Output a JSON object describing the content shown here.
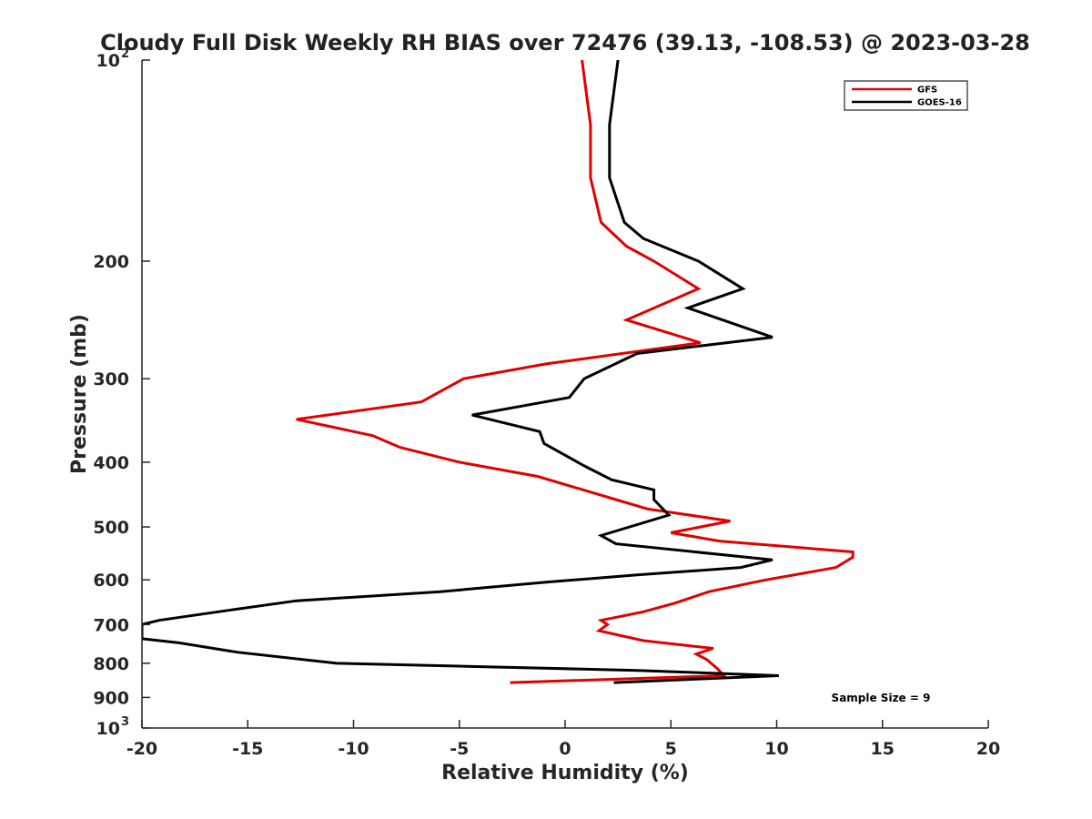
{
  "chart_data": {
    "type": "line",
    "title": "Cloudy Full Disk Weekly RH BIAS over 72476 (39.13, -108.53) @ 2023-03-28",
    "xlabel": "Relative Humidity (%)",
    "ylabel": "Pressure (mb)",
    "xlim": [
      -20,
      20
    ],
    "ylim": [
      100,
      1000
    ],
    "y_scale": "log",
    "y_reversed": true,
    "grid": false,
    "legend_position": "top-right",
    "x_ticks": [
      "-20",
      "-15",
      "-10",
      "-5",
      "0",
      "5",
      "10",
      "15",
      "20"
    ],
    "y_ticks": [
      {
        "value": 100,
        "base": "10",
        "exp": "2"
      },
      {
        "value": 200,
        "label": "200"
      },
      {
        "value": 300,
        "label": "300"
      },
      {
        "value": 400,
        "label": "400"
      },
      {
        "value": 500,
        "label": "500"
      },
      {
        "value": 600,
        "label": "600"
      },
      {
        "value": 700,
        "label": "700"
      },
      {
        "value": 800,
        "label": "800"
      },
      {
        "value": 900,
        "label": "900"
      },
      {
        "value": 1000,
        "base": "10",
        "exp": "3"
      }
    ],
    "annotation": "Sample Size = 9",
    "series": [
      {
        "name": "GFS",
        "color": "#e00000",
        "points": [
          [
            0.8,
            100
          ],
          [
            1.2,
            125
          ],
          [
            1.2,
            150
          ],
          [
            1.7,
            175
          ],
          [
            2.9,
            190
          ],
          [
            4.2,
            200
          ],
          [
            6.3,
            220
          ],
          [
            2.9,
            245
          ],
          [
            6.4,
            265
          ],
          [
            -0.9,
            285
          ],
          [
            -4.8,
            300
          ],
          [
            -6.8,
            325
          ],
          [
            -12.7,
            345
          ],
          [
            -9.1,
            365
          ],
          [
            -7.8,
            380
          ],
          [
            -5.0,
            400
          ],
          [
            -1.3,
            420
          ],
          [
            2.4,
            455
          ],
          [
            3.9,
            470
          ],
          [
            7.8,
            490
          ],
          [
            5.0,
            510
          ],
          [
            7.3,
            525
          ],
          [
            13.6,
            545
          ],
          [
            13.6,
            555
          ],
          [
            12.8,
            575
          ],
          [
            9.5,
            600
          ],
          [
            6.8,
            625
          ],
          [
            5.2,
            650
          ],
          [
            3.7,
            670
          ],
          [
            1.7,
            690
          ],
          [
            2.0,
            700
          ],
          [
            1.6,
            715
          ],
          [
            3.7,
            740
          ],
          [
            7.0,
            760
          ],
          [
            6.2,
            775
          ],
          [
            6.7,
            790
          ],
          [
            7.2,
            815
          ],
          [
            7.5,
            835
          ],
          [
            -2.6,
            855
          ]
        ]
      },
      {
        "name": "GOES-16",
        "color": "#000000",
        "points": [
          [
            2.5,
            100
          ],
          [
            2.1,
            125
          ],
          [
            2.1,
            150
          ],
          [
            2.8,
            175
          ],
          [
            3.7,
            185
          ],
          [
            6.3,
            200
          ],
          [
            8.4,
            220
          ],
          [
            5.8,
            235
          ],
          [
            9.8,
            260
          ],
          [
            3.4,
            275
          ],
          [
            0.9,
            300
          ],
          [
            0.2,
            320
          ],
          [
            -4.4,
            340
          ],
          [
            -1.2,
            360
          ],
          [
            -1.0,
            375
          ],
          [
            0.9,
            405
          ],
          [
            2.2,
            425
          ],
          [
            4.2,
            440
          ],
          [
            4.2,
            455
          ],
          [
            4.9,
            480
          ],
          [
            1.7,
            515
          ],
          [
            2.4,
            530
          ],
          [
            9.8,
            560
          ],
          [
            8.3,
            575
          ],
          [
            3.4,
            590
          ],
          [
            -0.9,
            605
          ],
          [
            -5.9,
            625
          ],
          [
            -12.7,
            645
          ],
          [
            -16.4,
            670
          ],
          [
            -19.2,
            690
          ],
          [
            -20.0,
            700
          ],
          [
            -20.0,
            720
          ],
          [
            -20.0,
            735
          ],
          [
            -18.3,
            745
          ],
          [
            -15.5,
            770
          ],
          [
            -10.8,
            800
          ],
          [
            3.4,
            820
          ],
          [
            10.1,
            835
          ],
          [
            2.3,
            855
          ]
        ]
      }
    ]
  }
}
